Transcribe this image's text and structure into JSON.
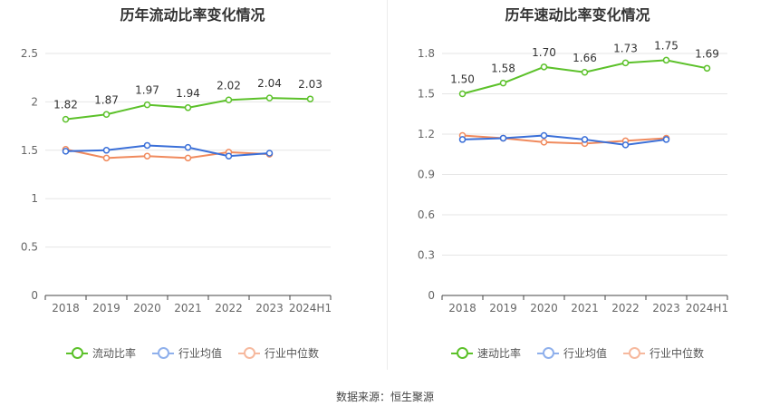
{
  "chart_data": [
    {
      "type": "line",
      "title": "历年流动比率变化情况",
      "categories": [
        "2018",
        "2019",
        "2020",
        "2021",
        "2022",
        "2023",
        "2024H1"
      ],
      "ylim": [
        0,
        2.5
      ],
      "yticks": [
        "0",
        "0.5",
        "1",
        "1.5",
        "2",
        "2.5"
      ],
      "grid": true,
      "legend_position": "bottom",
      "series": [
        {
          "name": "流动比率",
          "color": "#5cc12a",
          "values": [
            1.82,
            1.87,
            1.97,
            1.94,
            2.02,
            2.04,
            2.03
          ],
          "labels": [
            "1.82",
            "1.87",
            "1.97",
            "1.94",
            "2.02",
            "2.04",
            "2.03"
          ]
        },
        {
          "name": "行业均值",
          "color": "#3a6fd8",
          "values": [
            1.49,
            1.5,
            1.55,
            1.53,
            1.44,
            1.47,
            null
          ]
        },
        {
          "name": "行业中位数",
          "color": "#f08a5d",
          "values": [
            1.51,
            1.42,
            1.44,
            1.42,
            1.48,
            1.46,
            null
          ]
        }
      ]
    },
    {
      "type": "line",
      "title": "历年速动比率变化情况",
      "categories": [
        "2018",
        "2019",
        "2020",
        "2021",
        "2022",
        "2023",
        "2024H1"
      ],
      "ylim": [
        0,
        1.8
      ],
      "yticks": [
        "0",
        "0.3",
        "0.6",
        "0.9",
        "1.2",
        "1.5",
        "1.8"
      ],
      "grid": true,
      "legend_position": "bottom",
      "series": [
        {
          "name": "速动比率",
          "color": "#5cc12a",
          "values": [
            1.5,
            1.58,
            1.7,
            1.66,
            1.73,
            1.75,
            1.69
          ],
          "labels": [
            "1.50",
            "1.58",
            "1.70",
            "1.66",
            "1.73",
            "1.75",
            "1.69"
          ]
        },
        {
          "name": "行业均值",
          "color": "#3a6fd8",
          "values": [
            1.16,
            1.17,
            1.19,
            1.16,
            1.12,
            1.16,
            null
          ]
        },
        {
          "name": "行业中位数",
          "color": "#f08a5d",
          "values": [
            1.19,
            1.17,
            1.14,
            1.13,
            1.15,
            1.17,
            null
          ]
        }
      ]
    }
  ],
  "source_text": "数据来源：恒生聚源"
}
